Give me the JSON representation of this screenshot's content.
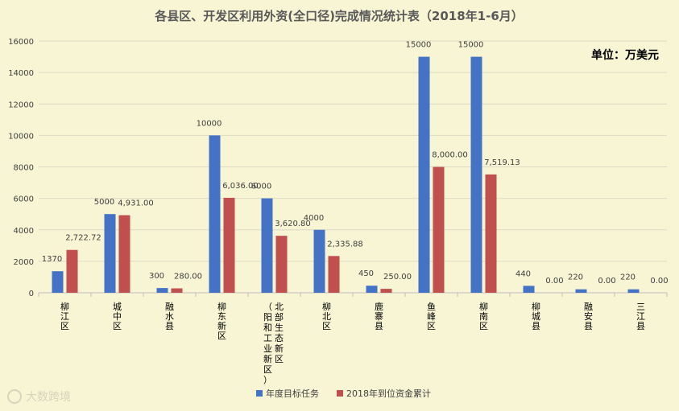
{
  "chart_data": {
    "type": "bar",
    "title": "各县区、开发区利用外资(全口径)完成情况统计表（2018年1-6月）",
    "unit_label": "单位：万美元",
    "categories": [
      [
        "柳",
        "江",
        "区"
      ],
      [
        "城",
        "中",
        "区"
      ],
      [
        "融",
        "水",
        "县"
      ],
      [
        "柳",
        "东",
        "新",
        "区"
      ],
      [
        "北部生态新区",
        "（阳和工业新区）"
      ],
      [
        "柳",
        "北",
        "区"
      ],
      [
        "鹿",
        "寨",
        "县"
      ],
      [
        "鱼",
        "峰",
        "区"
      ],
      [
        "柳",
        "南",
        "区"
      ],
      [
        "柳",
        "城",
        "县"
      ],
      [
        "融",
        "安",
        "县"
      ],
      [
        "三",
        "江",
        "县"
      ]
    ],
    "series": [
      {
        "name": "年度目标任务",
        "color": "#4472c4",
        "values": [
          1370,
          5000,
          300,
          10000,
          6000,
          4000,
          450,
          15000,
          15000,
          440,
          220,
          220
        ],
        "labels": [
          "1370",
          "5000",
          "300",
          "10000",
          "6000",
          "4000",
          "450",
          "15000",
          "15000",
          "440",
          "220",
          "220"
        ]
      },
      {
        "name": "2018年到位资金累计",
        "color": "#c0504d",
        "values": [
          2722.72,
          4931.0,
          280.0,
          6036.0,
          3620.8,
          2335.88,
          250.0,
          8000.0,
          7519.13,
          0,
          0,
          0
        ],
        "labels": [
          "2,722.72",
          "4,931.00",
          "280.00",
          "6,036.00",
          "3,620.80",
          "2,335.88",
          "250.00",
          "8,000.00",
          "7,519.13",
          "0.00",
          "0.00",
          "0.00"
        ]
      }
    ],
    "ylim": [
      0,
      16000
    ],
    "yticks": [
      "0",
      "2000",
      "4000",
      "6000",
      "8000",
      "10000",
      "12000",
      "14000",
      "16000"
    ],
    "grid": true,
    "legend_position": "bottom"
  },
  "watermark": "大数跨境"
}
